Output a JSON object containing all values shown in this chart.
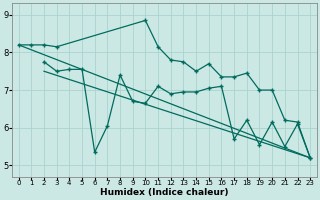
{
  "xlabel": "Humidex (Indice chaleur)",
  "bg_color": "#cce8e4",
  "line_color": "#006b5e",
  "grid_color": "#aad4ce",
  "xlim": [
    -0.5,
    23.5
  ],
  "ylim": [
    4.7,
    9.3
  ],
  "xticks": [
    0,
    1,
    2,
    3,
    4,
    5,
    6,
    7,
    8,
    9,
    10,
    11,
    12,
    13,
    14,
    15,
    16,
    17,
    18,
    19,
    20,
    21,
    22,
    23
  ],
  "yticks": [
    5,
    6,
    7,
    8,
    9
  ],
  "line1_x": [
    0,
    1,
    2,
    3,
    10,
    11,
    12,
    13,
    14,
    15,
    16,
    17,
    18,
    19,
    20,
    21,
    22,
    23
  ],
  "line1_y": [
    8.2,
    8.2,
    8.2,
    8.15,
    8.85,
    8.15,
    7.8,
    7.75,
    7.5,
    7.7,
    7.35,
    7.35,
    7.45,
    7.0,
    7.0,
    6.2,
    6.15,
    5.2
  ],
  "line2_x": [
    2,
    3,
    4,
    5,
    6,
    7,
    8,
    9,
    10,
    11,
    12,
    13,
    14,
    15,
    16,
    17,
    18,
    19,
    20,
    21,
    22,
    23
  ],
  "line2_y": [
    7.75,
    7.5,
    7.55,
    7.55,
    5.35,
    6.05,
    7.4,
    6.7,
    6.65,
    7.1,
    6.9,
    6.95,
    6.95,
    7.05,
    7.1,
    5.7,
    6.2,
    5.55,
    6.15,
    5.5,
    6.1,
    5.2
  ],
  "line3_x": [
    0,
    23
  ],
  "line3_y": [
    8.2,
    5.2
  ],
  "line4_x": [
    2,
    23
  ],
  "line4_y": [
    7.5,
    5.2
  ],
  "tick_fontsize_x": 5,
  "tick_fontsize_y": 6,
  "xlabel_fontsize": 6.5
}
